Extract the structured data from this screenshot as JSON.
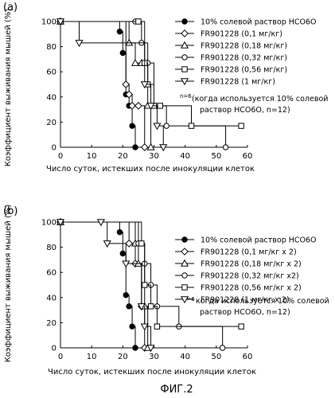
{
  "figure_caption": "ФИГ.2",
  "legend_note": {
    "a": {
      "prefix": "n=6",
      "line1": "(когда используется 10% солевой",
      "line2": "раствор НСО6О, n=12)"
    },
    "b": {
      "prefix": "n=6",
      "line1": "когда используется 10% солевой",
      "line2": "раствор НСО6О, n=12)"
    }
  },
  "chart_data": [
    {
      "panel": "(a)",
      "type": "line",
      "step": true,
      "ylabel": "Коэффициент выживания мышей (%)",
      "xlabel": "Число суток, истекших после инокуляции клеток",
      "xlim": [
        0,
        60
      ],
      "ylim": [
        0,
        100
      ],
      "xticks": [
        0,
        10,
        20,
        30,
        40,
        50,
        60
      ],
      "yticks": [
        0,
        20,
        40,
        60,
        80,
        100
      ],
      "series": [
        {
          "name": "10% солевой раствор НСО6О",
          "marker": "filled-circle",
          "x": [
            0,
            19,
            20,
            21,
            22,
            23,
            24
          ],
          "y": [
            100,
            92,
            75,
            42,
            33,
            17,
            0
          ]
        },
        {
          "name": "FR901228 (0,1 мг/кг)",
          "marker": "diamond",
          "x": [
            0,
            21,
            22,
            23,
            25,
            27
          ],
          "y": [
            100,
            50,
            42,
            33,
            33,
            0
          ]
        },
        {
          "name": "FR901228 (0,18 мг/кг)",
          "marker": "triangle-up",
          "x": [
            0,
            22,
            24,
            26,
            28,
            29
          ],
          "y": [
            100,
            83,
            67,
            67,
            33,
            0
          ]
        },
        {
          "name": "FR901228 (0,32 мг/кг)",
          "marker": "circle",
          "x": [
            0,
            24,
            26,
            28,
            30,
            34,
            53
          ],
          "y": [
            100,
            100,
            83,
            67,
            33,
            17,
            0
          ]
        },
        {
          "name": "FR901228 (0,56 мг/кг)",
          "marker": "square",
          "x": [
            0,
            25,
            27,
            28,
            30,
            32,
            42,
            58
          ],
          "y": [
            100,
            100,
            67,
            50,
            33,
            33,
            17,
            17
          ]
        },
        {
          "name": "FR901228 (1 мг/кг)",
          "marker": "triangle-down",
          "x": [
            0,
            6,
            27,
            29,
            31,
            33
          ],
          "y": [
            100,
            83,
            50,
            33,
            17,
            0
          ]
        }
      ]
    },
    {
      "panel": "(b)",
      "type": "line",
      "step": true,
      "ylabel": "Коэффициент выживания мышей (%)",
      "xlabel": "Число суток, истекших после инокуляции клеток",
      "xlim": [
        0,
        60
      ],
      "ylim": [
        0,
        100
      ],
      "xticks": [
        0,
        10,
        20,
        30,
        40,
        50,
        60
      ],
      "yticks": [
        0,
        20,
        40,
        60,
        80,
        100
      ],
      "series": [
        {
          "name": "10% солевой раствор НСО6О",
          "marker": "filled-circle",
          "x": [
            0,
            19,
            20,
            21,
            22,
            23,
            24
          ],
          "y": [
            100,
            92,
            75,
            42,
            33,
            17,
            0
          ]
        },
        {
          "name": "FR901228 (0,1 мг/кг x 2)",
          "marker": "diamond",
          "x": [
            0,
            22,
            24,
            26,
            27
          ],
          "y": [
            100,
            83,
            67,
            33,
            0
          ]
        },
        {
          "name": "FR901228 (0,18 мг/кг x 2)",
          "marker": "triangle-up",
          "x": [
            0,
            24,
            25,
            27,
            28
          ],
          "y": [
            100,
            83,
            67,
            33,
            0
          ]
        },
        {
          "name": "FR901228 (0,32 мг/кг x2)",
          "marker": "circle",
          "x": [
            0,
            25,
            27,
            29,
            31,
            38,
            52
          ],
          "y": [
            100,
            83,
            67,
            50,
            33,
            17,
            0
          ]
        },
        {
          "name": "FR901228 (0,56 мг/кг x 2)",
          "marker": "square",
          "x": [
            0,
            26,
            27,
            29,
            31,
            58
          ],
          "y": [
            100,
            83,
            50,
            33,
            17,
            17
          ]
        },
        {
          "name": "FR901228 (1 мг/кг x 2)",
          "marker": "triangle-down",
          "x": [
            0,
            13,
            15,
            21,
            26,
            27,
            29
          ],
          "y": [
            100,
            100,
            83,
            67,
            33,
            17,
            0
          ]
        }
      ]
    }
  ]
}
